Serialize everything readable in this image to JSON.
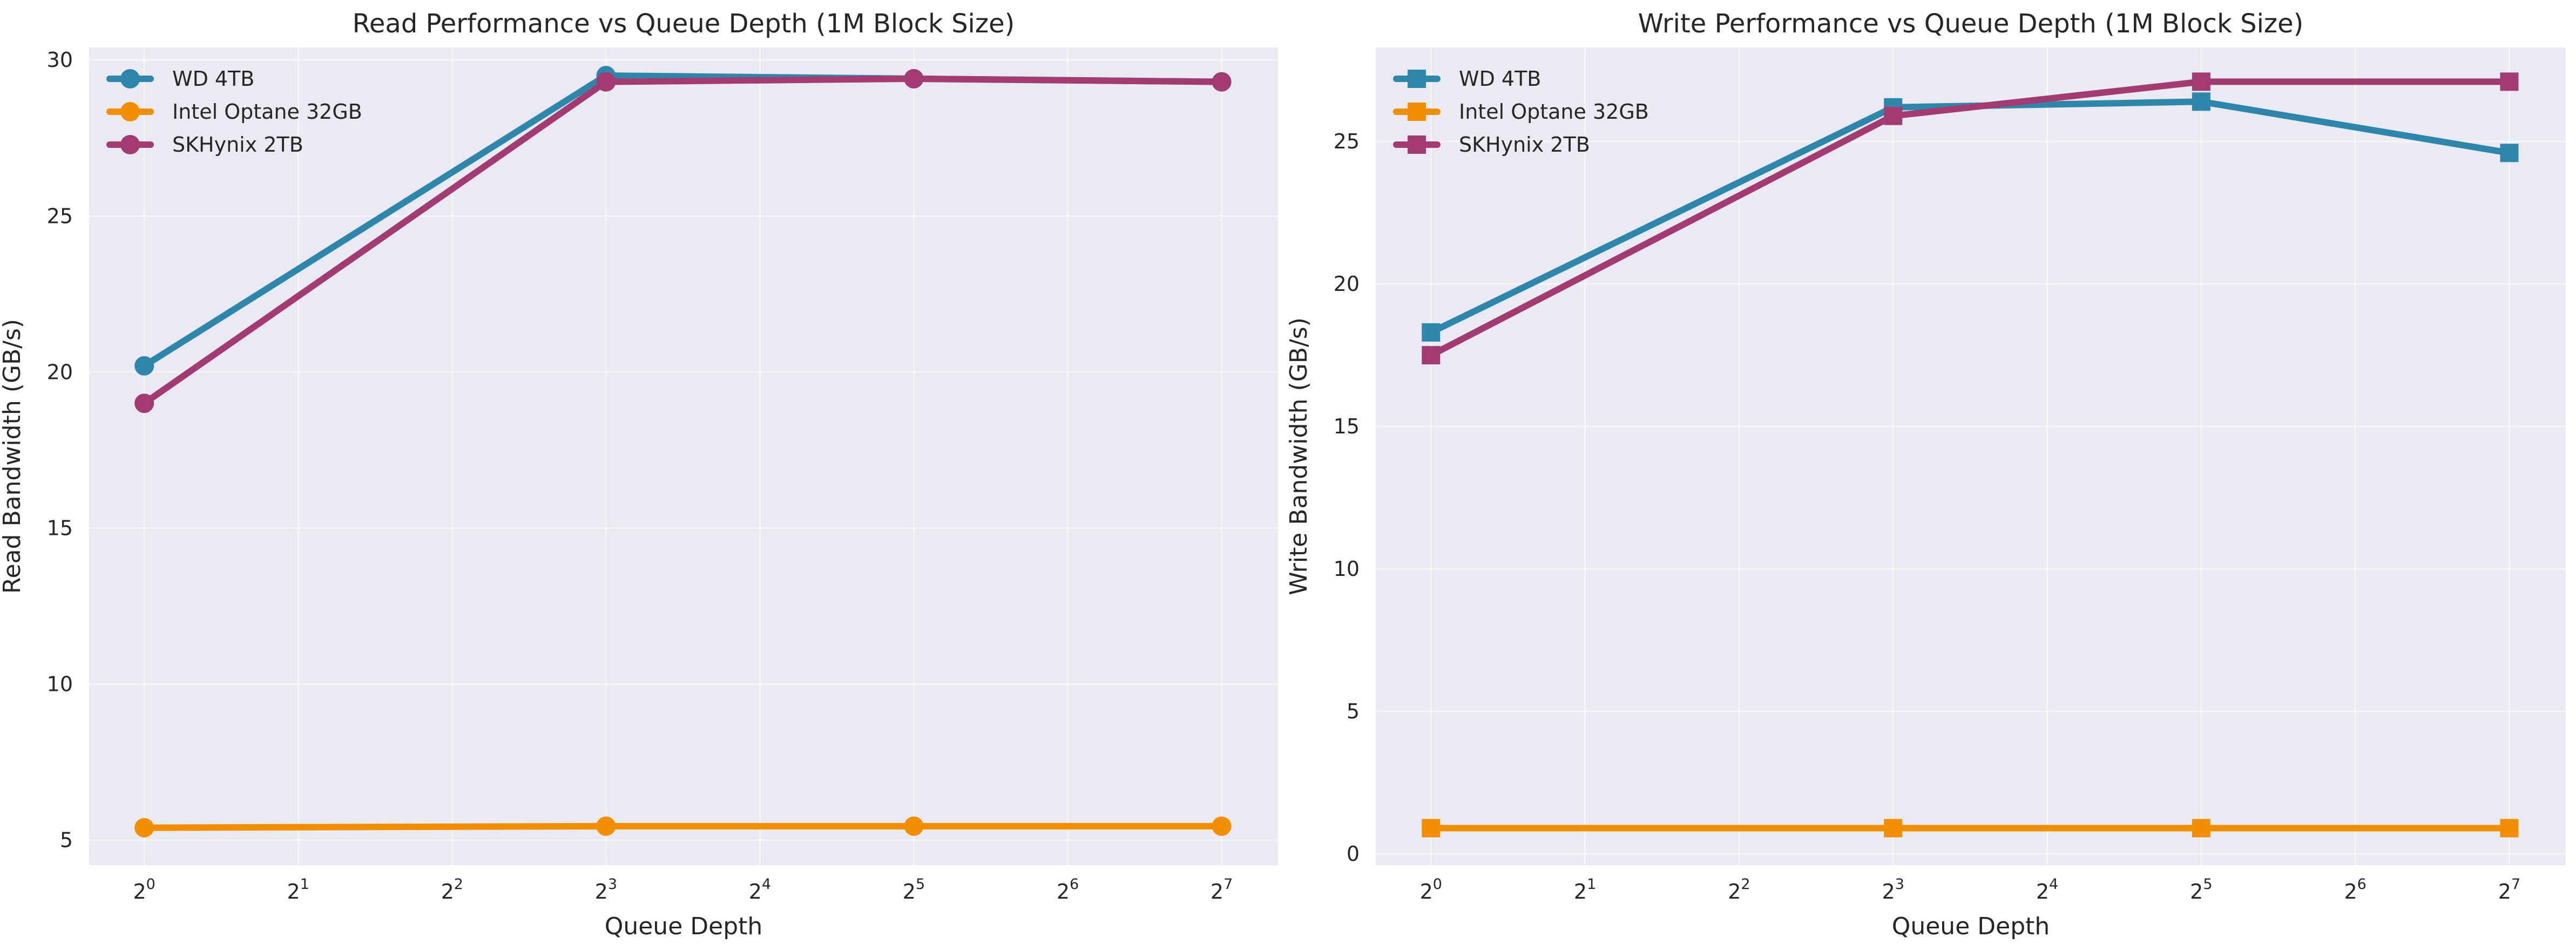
{
  "chart_data": [
    {
      "type": "line",
      "title": "Read Performance vs Queue Depth (1M Block Size)",
      "xlabel": "Queue Depth",
      "ylabel": "Read Bandwidth (GB/s)",
      "x_scale": "log2",
      "x": [
        1,
        8,
        32,
        128
      ],
      "x_ticks": [
        {
          "value": 1,
          "base": "2",
          "exp": "0"
        },
        {
          "value": 2,
          "base": "2",
          "exp": "1"
        },
        {
          "value": 4,
          "base": "2",
          "exp": "2"
        },
        {
          "value": 8,
          "base": "2",
          "exp": "3"
        },
        {
          "value": 16,
          "base": "2",
          "exp": "4"
        },
        {
          "value": 32,
          "base": "2",
          "exp": "5"
        },
        {
          "value": 64,
          "base": "2",
          "exp": "6"
        },
        {
          "value": 128,
          "base": "2",
          "exp": "7"
        }
      ],
      "xlim": [
        0.78,
        165
      ],
      "ylim": [
        4.2,
        30.4
      ],
      "y_ticks": [
        5,
        10,
        15,
        20,
        25,
        30
      ],
      "marker": "circle",
      "grid": true,
      "legend_position": "top-left",
      "series": [
        {
          "name": "WD 4TB",
          "color": "#2e86ab",
          "values": [
            20.2,
            29.5,
            29.4,
            29.3
          ]
        },
        {
          "name": "Intel Optane 32GB",
          "color": "#f18f01",
          "values": [
            5.4,
            5.45,
            5.45,
            5.45
          ]
        },
        {
          "name": "SKHynix 2TB",
          "color": "#a23b72",
          "values": [
            19.0,
            29.3,
            29.4,
            29.3
          ]
        }
      ]
    },
    {
      "type": "line",
      "title": "Write Performance vs Queue Depth (1M Block Size)",
      "xlabel": "Queue Depth",
      "ylabel": "Write Bandwidth (GB/s)",
      "x_scale": "log2",
      "x": [
        1,
        8,
        32,
        128
      ],
      "x_ticks": [
        {
          "value": 1,
          "base": "2",
          "exp": "0"
        },
        {
          "value": 2,
          "base": "2",
          "exp": "1"
        },
        {
          "value": 4,
          "base": "2",
          "exp": "2"
        },
        {
          "value": 8,
          "base": "2",
          "exp": "3"
        },
        {
          "value": 16,
          "base": "2",
          "exp": "4"
        },
        {
          "value": 32,
          "base": "2",
          "exp": "5"
        },
        {
          "value": 64,
          "base": "2",
          "exp": "6"
        },
        {
          "value": 128,
          "base": "2",
          "exp": "7"
        }
      ],
      "xlim": [
        0.78,
        165
      ],
      "ylim": [
        -0.4,
        28.3
      ],
      "y_ticks": [
        0,
        5,
        10,
        15,
        20,
        25
      ],
      "marker": "square",
      "grid": true,
      "legend_position": "top-left",
      "series": [
        {
          "name": "WD 4TB",
          "color": "#2e86ab",
          "values": [
            18.3,
            26.2,
            26.4,
            24.6
          ]
        },
        {
          "name": "Intel Optane 32GB",
          "color": "#f18f01",
          "values": [
            0.9,
            0.9,
            0.9,
            0.9
          ]
        },
        {
          "name": "SKHynix 2TB",
          "color": "#a23b72",
          "values": [
            17.5,
            25.9,
            27.1,
            27.1
          ]
        }
      ]
    }
  ]
}
